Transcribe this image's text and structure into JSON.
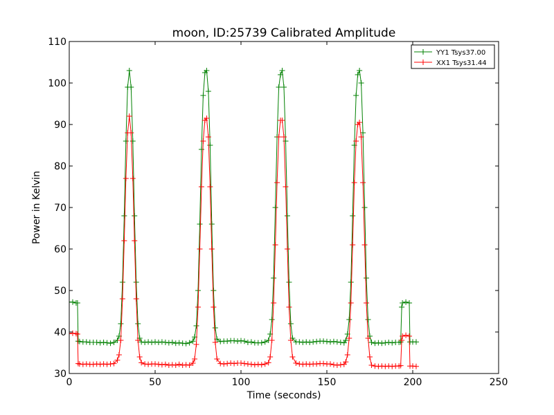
{
  "chart_data": {
    "type": "line",
    "title": "moon, ID:25739 Calibrated Amplitude",
    "xlabel": "Time (seconds)",
    "ylabel": "Power in Kelvin",
    "xlim": [
      0,
      250
    ],
    "ylim": [
      30,
      110
    ],
    "xticks": [
      "0",
      "50",
      "100",
      "150",
      "200",
      "250"
    ],
    "yticks": [
      "30",
      "40",
      "50",
      "60",
      "70",
      "80",
      "90",
      "100",
      "110"
    ],
    "grid": false,
    "legend_position": "top-right",
    "marker": "plus",
    "series": [
      {
        "name": "YY1 Tsys37.00",
        "color": "#008000",
        "points": [
          [
            0,
            47.2
          ],
          [
            2,
            47.2
          ],
          [
            4,
            47.0
          ],
          [
            4.8,
            47.0
          ],
          [
            5.2,
            37.8
          ],
          [
            6,
            37.7
          ],
          [
            8,
            37.6
          ],
          [
            10,
            37.6
          ],
          [
            12,
            37.5
          ],
          [
            14,
            37.5
          ],
          [
            16,
            37.5
          ],
          [
            18,
            37.4
          ],
          [
            20,
            37.5
          ],
          [
            22,
            37.4
          ],
          [
            24,
            37.3
          ],
          [
            26,
            37.5
          ],
          [
            28,
            38.0
          ],
          [
            29,
            39.0
          ],
          [
            30,
            42.0
          ],
          [
            31,
            52.0
          ],
          [
            32,
            68.0
          ],
          [
            33,
            86.0
          ],
          [
            34,
            99.0
          ],
          [
            35,
            103.0
          ],
          [
            36,
            99.0
          ],
          [
            37,
            86.0
          ],
          [
            38,
            68.0
          ],
          [
            39,
            52.0
          ],
          [
            40,
            42.0
          ],
          [
            41,
            38.5
          ],
          [
            42,
            37.6
          ],
          [
            44,
            37.5
          ],
          [
            46,
            37.6
          ],
          [
            48,
            37.5
          ],
          [
            50,
            37.6
          ],
          [
            52,
            37.5
          ],
          [
            54,
            37.6
          ],
          [
            56,
            37.5
          ],
          [
            58,
            37.4
          ],
          [
            60,
            37.5
          ],
          [
            62,
            37.3
          ],
          [
            64,
            37.4
          ],
          [
            66,
            37.3
          ],
          [
            68,
            37.2
          ],
          [
            70,
            37.4
          ],
          [
            72,
            37.8
          ],
          [
            73,
            38.8
          ],
          [
            74,
            41.5
          ],
          [
            75,
            50.0
          ],
          [
            76,
            66.0
          ],
          [
            77,
            84.0
          ],
          [
            78,
            97.0
          ],
          [
            79,
            102.5
          ],
          [
            80,
            103.0
          ],
          [
            81,
            98.0
          ],
          [
            82,
            85.0
          ],
          [
            83,
            66.0
          ],
          [
            84,
            50.0
          ],
          [
            85,
            41.0
          ],
          [
            86,
            38.3
          ],
          [
            88,
            37.7
          ],
          [
            90,
            37.8
          ],
          [
            92,
            37.8
          ],
          [
            94,
            37.9
          ],
          [
            96,
            37.9
          ],
          [
            98,
            37.8
          ],
          [
            100,
            37.9
          ],
          [
            102,
            37.8
          ],
          [
            104,
            37.5
          ],
          [
            106,
            37.6
          ],
          [
            108,
            37.4
          ],
          [
            110,
            37.4
          ],
          [
            112,
            37.4
          ],
          [
            114,
            37.6
          ],
          [
            116,
            38.0
          ],
          [
            117,
            39.5
          ],
          [
            118,
            43.0
          ],
          [
            119,
            53.0
          ],
          [
            120,
            70.0
          ],
          [
            121,
            87.0
          ],
          [
            122,
            99.0
          ],
          [
            123,
            102.0
          ],
          [
            124,
            103.0
          ],
          [
            125,
            99.0
          ],
          [
            126,
            86.0
          ],
          [
            127,
            68.0
          ],
          [
            128,
            52.0
          ],
          [
            129,
            42.0
          ],
          [
            130,
            38.5
          ],
          [
            132,
            37.6
          ],
          [
            134,
            37.6
          ],
          [
            136,
            37.5
          ],
          [
            138,
            37.6
          ],
          [
            140,
            37.5
          ],
          [
            142,
            37.6
          ],
          [
            144,
            37.7
          ],
          [
            146,
            37.8
          ],
          [
            148,
            37.8
          ],
          [
            150,
            37.7
          ],
          [
            152,
            37.6
          ],
          [
            154,
            37.7
          ],
          [
            156,
            37.6
          ],
          [
            158,
            37.5
          ],
          [
            160,
            37.4
          ],
          [
            161,
            38.0
          ],
          [
            162,
            39.5
          ],
          [
            163,
            43.0
          ],
          [
            164,
            52.0
          ],
          [
            165,
            68.0
          ],
          [
            166,
            85.0
          ],
          [
            167,
            97.0
          ],
          [
            168,
            102.0
          ],
          [
            169,
            103.0
          ],
          [
            170,
            100.0
          ],
          [
            171,
            88.0
          ],
          [
            172,
            70.0
          ],
          [
            173,
            53.0
          ],
          [
            174,
            43.0
          ],
          [
            175,
            39.0
          ],
          [
            176,
            37.5
          ],
          [
            178,
            37.3
          ],
          [
            180,
            37.4
          ],
          [
            182,
            37.3
          ],
          [
            184,
            37.4
          ],
          [
            186,
            37.5
          ],
          [
            188,
            37.4
          ],
          [
            190,
            37.5
          ],
          [
            192,
            37.5
          ],
          [
            193,
            37.6
          ],
          [
            193.6,
            46.0
          ],
          [
            194,
            47.0
          ],
          [
            196,
            47.2
          ],
          [
            198,
            47.0
          ],
          [
            198.4,
            37.6
          ],
          [
            200,
            37.6
          ],
          [
            202,
            37.6
          ]
        ]
      },
      {
        "name": "XX1 Tsys31.44",
        "color": "#ff0000",
        "points": [
          [
            0,
            39.6
          ],
          [
            2,
            39.7
          ],
          [
            4,
            39.6
          ],
          [
            4.8,
            39.5
          ],
          [
            5.2,
            32.4
          ],
          [
            6,
            32.3
          ],
          [
            8,
            32.2
          ],
          [
            10,
            32.3
          ],
          [
            12,
            32.2
          ],
          [
            14,
            32.2
          ],
          [
            16,
            32.3
          ],
          [
            18,
            32.2
          ],
          [
            20,
            32.3
          ],
          [
            22,
            32.2
          ],
          [
            24,
            32.3
          ],
          [
            26,
            32.4
          ],
          [
            28,
            33.2
          ],
          [
            29,
            34.5
          ],
          [
            30,
            38.0
          ],
          [
            31,
            48.0
          ],
          [
            32,
            62.0
          ],
          [
            33,
            77.0
          ],
          [
            34,
            88.0
          ],
          [
            35,
            92.0
          ],
          [
            36,
            88.0
          ],
          [
            37,
            77.0
          ],
          [
            38,
            62.0
          ],
          [
            39,
            48.0
          ],
          [
            40,
            38.0
          ],
          [
            41,
            34.0
          ],
          [
            42,
            32.6
          ],
          [
            44,
            32.3
          ],
          [
            46,
            32.2
          ],
          [
            48,
            32.3
          ],
          [
            50,
            32.3
          ],
          [
            52,
            32.2
          ],
          [
            54,
            32.1
          ],
          [
            56,
            32.2
          ],
          [
            58,
            32.0
          ],
          [
            60,
            32.1
          ],
          [
            62,
            32.0
          ],
          [
            64,
            32.2
          ],
          [
            66,
            32.0
          ],
          [
            68,
            32.1
          ],
          [
            70,
            32.0
          ],
          [
            72,
            32.5
          ],
          [
            73,
            33.5
          ],
          [
            74,
            37.0
          ],
          [
            75,
            46.0
          ],
          [
            76,
            60.0
          ],
          [
            77,
            75.0
          ],
          [
            78,
            86.0
          ],
          [
            79,
            91.0
          ],
          [
            80,
            91.5
          ],
          [
            81,
            87.0
          ],
          [
            82,
            75.0
          ],
          [
            83,
            60.0
          ],
          [
            84,
            46.0
          ],
          [
            85,
            37.5
          ],
          [
            86,
            33.5
          ],
          [
            88,
            32.4
          ],
          [
            90,
            32.3
          ],
          [
            92,
            32.4
          ],
          [
            94,
            32.5
          ],
          [
            96,
            32.4
          ],
          [
            98,
            32.5
          ],
          [
            100,
            32.5
          ],
          [
            102,
            32.4
          ],
          [
            104,
            32.3
          ],
          [
            106,
            32.2
          ],
          [
            108,
            32.1
          ],
          [
            110,
            32.2
          ],
          [
            112,
            32.1
          ],
          [
            114,
            32.3
          ],
          [
            116,
            32.6
          ],
          [
            117,
            34.0
          ],
          [
            118,
            38.0
          ],
          [
            119,
            47.0
          ],
          [
            120,
            61.0
          ],
          [
            121,
            76.0
          ],
          [
            122,
            87.0
          ],
          [
            123,
            91.0
          ],
          [
            124,
            91.0
          ],
          [
            125,
            87.0
          ],
          [
            126,
            75.0
          ],
          [
            127,
            60.0
          ],
          [
            128,
            46.0
          ],
          [
            129,
            38.0
          ],
          [
            130,
            34.0
          ],
          [
            132,
            32.5
          ],
          [
            134,
            32.3
          ],
          [
            136,
            32.2
          ],
          [
            138,
            32.3
          ],
          [
            140,
            32.2
          ],
          [
            142,
            32.3
          ],
          [
            144,
            32.3
          ],
          [
            146,
            32.4
          ],
          [
            148,
            32.4
          ],
          [
            150,
            32.3
          ],
          [
            152,
            32.3
          ],
          [
            154,
            32.1
          ],
          [
            156,
            32.0
          ],
          [
            158,
            32.1
          ],
          [
            160,
            32.2
          ],
          [
            161,
            32.8
          ],
          [
            162,
            34.5
          ],
          [
            163,
            38.5
          ],
          [
            164,
            47.0
          ],
          [
            165,
            61.0
          ],
          [
            166,
            76.0
          ],
          [
            167,
            86.0
          ],
          [
            168,
            90.0
          ],
          [
            169,
            90.5
          ],
          [
            170,
            87.0
          ],
          [
            171,
            76.0
          ],
          [
            172,
            61.0
          ],
          [
            173,
            47.0
          ],
          [
            174,
            38.5
          ],
          [
            175,
            34.0
          ],
          [
            176,
            32.0
          ],
          [
            178,
            31.8
          ],
          [
            180,
            31.7
          ],
          [
            182,
            31.8
          ],
          [
            184,
            31.7
          ],
          [
            186,
            31.8
          ],
          [
            188,
            31.7
          ],
          [
            190,
            31.8
          ],
          [
            192,
            31.8
          ],
          [
            193,
            31.9
          ],
          [
            193.6,
            38.0
          ],
          [
            194,
            39.0
          ],
          [
            196,
            39.2
          ],
          [
            198,
            39.0
          ],
          [
            198.4,
            31.8
          ],
          [
            200,
            31.8
          ],
          [
            202,
            31.7
          ]
        ]
      }
    ]
  }
}
